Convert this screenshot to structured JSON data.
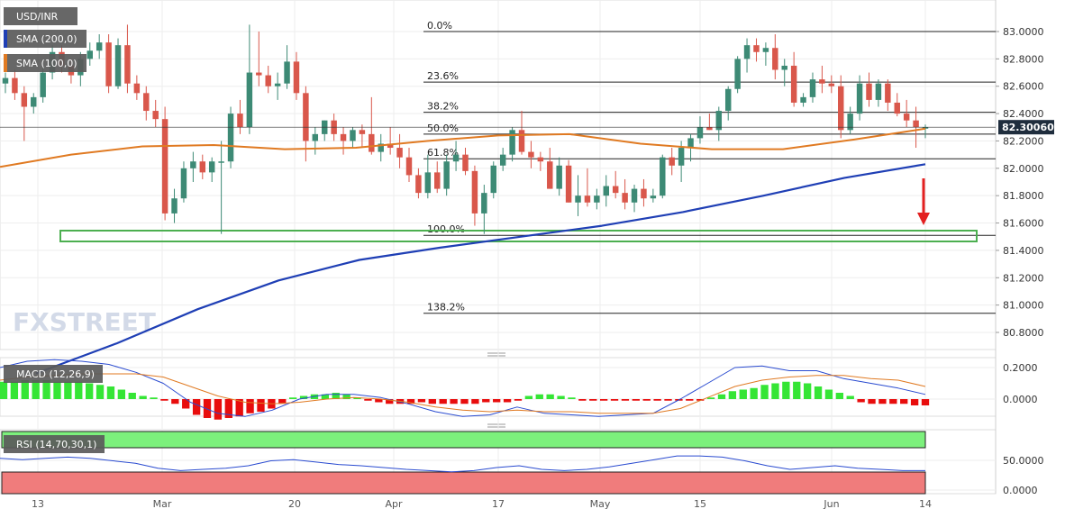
{
  "chart_data": [
    {
      "type": "candlestick",
      "symbol": "USD/INR",
      "x_ticks": [
        "13",
        "Mar",
        "20",
        "Apr",
        "17",
        "May",
        "15",
        "Jun",
        "14"
      ],
      "ylim": [
        80.7,
        83.1
      ],
      "y_ticks": [
        "83.0000",
        "82.8000",
        "82.6000",
        "82.4000",
        "82.2000",
        "82.0000",
        "81.8000",
        "81.6000",
        "81.4000",
        "81.2000",
        "81.0000",
        "80.8000"
      ],
      "last_price": "82.30060",
      "watermark": "FXSTREET",
      "colors": {
        "bull": "#3d8a75",
        "bear": "#d9574b",
        "sma200": "#1f3fb5",
        "sma100": "#e07a22",
        "box": "#4caf50",
        "arrow": "#e32020"
      },
      "fibonacci": [
        {
          "label": "0.0%",
          "value": 83.0
        },
        {
          "label": "23.6%",
          "value": 82.63
        },
        {
          "label": "38.2%",
          "value": 82.41
        },
        {
          "label": "50.0%",
          "value": 82.25
        },
        {
          "label": "61.8%",
          "value": 82.07
        },
        {
          "label": "100.0%",
          "value": 81.51
        },
        {
          "label": "138.2%",
          "value": 80.94
        }
      ],
      "series": [
        {
          "name": "SMA (200,0)",
          "type": "line",
          "values": [
            80.5,
            80.72,
            80.97,
            81.18,
            81.33,
            81.42,
            81.5,
            81.58,
            81.68,
            81.8,
            81.93,
            82.03
          ]
        },
        {
          "name": "SMA (100,0)",
          "type": "line",
          "values": [
            82.01,
            82.1,
            82.16,
            82.17,
            82.14,
            82.15,
            82.2,
            82.24,
            82.25,
            82.18,
            82.14,
            82.14,
            82.21,
            82.29
          ]
        }
      ],
      "candles": [
        [
          82.62,
          82.7,
          82.55,
          82.66
        ],
        [
          82.66,
          82.72,
          82.5,
          82.55
        ],
        [
          82.55,
          82.6,
          82.2,
          82.45
        ],
        [
          82.45,
          82.55,
          82.4,
          82.52
        ],
        [
          82.52,
          82.75,
          82.48,
          82.7
        ],
        [
          82.7,
          82.9,
          82.65,
          82.85
        ],
        [
          82.85,
          82.9,
          82.7,
          82.75
        ],
        [
          82.75,
          82.8,
          82.62,
          82.68
        ],
        [
          82.68,
          82.85,
          82.6,
          82.8
        ],
        [
          82.8,
          82.92,
          82.75,
          82.86
        ],
        [
          82.86,
          82.98,
          82.8,
          82.92
        ],
        [
          82.92,
          82.98,
          82.55,
          82.6
        ],
        [
          82.6,
          82.95,
          82.58,
          82.9
        ],
        [
          82.9,
          83.05,
          82.55,
          82.62
        ],
        [
          82.62,
          82.68,
          82.5,
          82.55
        ],
        [
          82.55,
          82.6,
          82.35,
          82.42
        ],
        [
          82.42,
          82.5,
          82.3,
          82.36
        ],
        [
          82.36,
          82.45,
          81.62,
          81.67
        ],
        [
          81.67,
          81.85,
          81.6,
          81.78
        ],
        [
          81.78,
          82.05,
          81.75,
          82.0
        ],
        [
          82.0,
          82.12,
          81.9,
          82.05
        ],
        [
          82.05,
          82.1,
          81.92,
          81.97
        ],
        [
          81.97,
          82.08,
          81.9,
          82.05
        ],
        [
          82.05,
          82.2,
          81.52,
          82.05
        ],
        [
          82.05,
          82.45,
          82.0,
          82.4
        ],
        [
          82.4,
          82.5,
          82.25,
          82.3
        ],
        [
          82.3,
          83.05,
          82.25,
          82.7
        ],
        [
          82.7,
          83.0,
          82.6,
          82.68
        ],
        [
          82.68,
          82.75,
          82.55,
          82.6
        ],
        [
          82.6,
          82.7,
          82.5,
          82.62
        ],
        [
          82.62,
          82.9,
          82.58,
          82.78
        ],
        [
          82.78,
          82.85,
          82.5,
          82.55
        ],
        [
          82.55,
          82.6,
          82.05,
          82.2
        ],
        [
          82.2,
          82.3,
          82.1,
          82.25
        ],
        [
          82.25,
          82.35,
          82.2,
          82.35
        ],
        [
          82.35,
          82.4,
          82.2,
          82.25
        ],
        [
          82.25,
          82.3,
          82.1,
          82.2
        ],
        [
          82.2,
          82.3,
          82.15,
          82.28
        ],
        [
          82.28,
          82.32,
          82.15,
          82.25
        ],
        [
          82.25,
          82.52,
          82.1,
          82.12
        ],
        [
          82.12,
          82.25,
          82.05,
          82.18
        ],
        [
          82.18,
          82.3,
          82.1,
          82.15
        ],
        [
          82.15,
          82.25,
          82.0,
          82.08
        ],
        [
          82.08,
          82.15,
          81.9,
          81.95
        ],
        [
          81.95,
          82.0,
          81.78,
          81.82
        ],
        [
          81.82,
          82.1,
          81.78,
          81.97
        ],
        [
          81.97,
          82.05,
          81.82,
          81.85
        ],
        [
          81.85,
          82.1,
          81.8,
          82.05
        ],
        [
          82.05,
          82.2,
          81.98,
          82.1
        ],
        [
          82.1,
          82.15,
          81.95,
          81.98
        ],
        [
          81.98,
          82.02,
          81.58,
          81.67
        ],
        [
          81.67,
          81.88,
          81.52,
          81.82
        ],
        [
          81.82,
          82.05,
          81.78,
          82.02
        ],
        [
          82.02,
          82.15,
          81.98,
          82.1
        ],
        [
          82.1,
          82.3,
          82.05,
          82.28
        ],
        [
          82.28,
          82.42,
          82.1,
          82.12
        ],
        [
          82.12,
          82.2,
          82.0,
          82.08
        ],
        [
          82.08,
          82.12,
          81.98,
          82.05
        ],
        [
          82.05,
          82.15,
          81.85,
          81.85
        ],
        [
          81.85,
          82.08,
          81.8,
          82.02
        ],
        [
          82.02,
          82.06,
          81.75,
          81.75
        ],
        [
          81.75,
          81.95,
          81.65,
          81.8
        ],
        [
          81.8,
          82.0,
          81.72,
          81.75
        ],
        [
          81.75,
          81.85,
          81.7,
          81.8
        ],
        [
          81.8,
          81.95,
          81.72,
          81.87
        ],
        [
          81.87,
          81.98,
          81.78,
          81.82
        ],
        [
          81.82,
          81.92,
          81.7,
          81.75
        ],
        [
          81.75,
          81.88,
          81.68,
          81.85
        ],
        [
          81.85,
          81.92,
          81.72,
          81.78
        ],
        [
          81.78,
          81.85,
          81.75,
          81.8
        ],
        [
          81.8,
          82.1,
          81.78,
          82.08
        ],
        [
          82.08,
          82.15,
          81.95,
          82.02
        ],
        [
          82.02,
          82.2,
          81.9,
          82.15
        ],
        [
          82.15,
          82.25,
          82.05,
          82.22
        ],
        [
          82.22,
          82.38,
          82.18,
          82.3
        ],
        [
          82.3,
          82.4,
          82.28,
          82.28
        ],
        [
          82.28,
          82.45,
          82.2,
          82.42
        ],
        [
          82.42,
          82.6,
          82.35,
          82.58
        ],
        [
          82.58,
          82.82,
          82.55,
          82.8
        ],
        [
          82.8,
          82.95,
          82.7,
          82.9
        ],
        [
          82.9,
          82.95,
          82.78,
          82.85
        ],
        [
          82.85,
          82.92,
          82.75,
          82.88
        ],
        [
          82.88,
          82.98,
          82.65,
          82.72
        ],
        [
          82.72,
          82.8,
          82.6,
          82.75
        ],
        [
          82.75,
          82.85,
          82.45,
          82.48
        ],
        [
          82.48,
          82.55,
          82.45,
          82.52
        ],
        [
          82.52,
          82.7,
          82.48,
          82.65
        ],
        [
          82.65,
          82.75,
          82.55,
          82.62
        ],
        [
          82.62,
          82.68,
          82.55,
          82.6
        ],
        [
          82.6,
          82.68,
          82.22,
          82.28
        ],
        [
          82.28,
          82.45,
          82.25,
          82.4
        ],
        [
          82.4,
          82.68,
          82.35,
          82.62
        ],
        [
          82.62,
          82.7,
          82.45,
          82.5
        ],
        [
          82.5,
          82.65,
          82.45,
          82.62
        ],
        [
          82.62,
          82.65,
          82.42,
          82.48
        ],
        [
          82.48,
          82.55,
          82.38,
          82.4
        ],
        [
          82.4,
          82.5,
          82.3,
          82.35
        ],
        [
          82.35,
          82.45,
          82.15,
          82.3
        ],
        [
          82.3,
          82.32,
          82.22,
          82.3
        ]
      ]
    },
    {
      "type": "bar",
      "name": "MACD (12,26,9)",
      "y_ticks": [
        "0.2000",
        "0.0000"
      ],
      "ylim": [
        -0.15,
        0.23
      ],
      "values": [
        0.11,
        0.11,
        0.12,
        0.12,
        0.12,
        0.11,
        0.11,
        0.11,
        0.1,
        0.09,
        0.08,
        0.06,
        0.04,
        0.02,
        0.01,
        -0.01,
        -0.03,
        -0.06,
        -0.1,
        -0.12,
        -0.13,
        -0.12,
        -0.11,
        -0.09,
        -0.08,
        -0.06,
        -0.03,
        0.01,
        0.02,
        0.03,
        0.03,
        0.04,
        0.03,
        0.01,
        -0.01,
        -0.02,
        -0.03,
        -0.03,
        -0.03,
        -0.02,
        -0.03,
        -0.03,
        -0.03,
        -0.03,
        -0.03,
        -0.02,
        -0.02,
        -0.02,
        -0.01,
        0.02,
        0.03,
        0.03,
        0.02,
        0.01,
        -0.01,
        -0.01,
        -0.01,
        -0.01,
        -0.01,
        -0.01,
        -0.01,
        -0.01,
        -0.01,
        -0.01,
        -0.01,
        -0.01,
        0.01,
        0.03,
        0.05,
        0.06,
        0.07,
        0.09,
        0.1,
        0.11,
        0.11,
        0.1,
        0.08,
        0.06,
        0.04,
        0.02,
        -0.02,
        -0.03,
        -0.03,
        -0.03,
        -0.03,
        -0.04,
        -0.04
      ],
      "macd_line": [
        0.2,
        0.24,
        0.25,
        0.24,
        0.22,
        0.17,
        0.1,
        -0.02,
        -0.09,
        -0.11,
        -0.07,
        0.0,
        0.03,
        0.03,
        0.01,
        -0.03,
        -0.08,
        -0.11,
        -0.1,
        -0.05,
        -0.09,
        -0.1,
        -0.11,
        -0.1,
        -0.09,
        0.0,
        0.1,
        0.2,
        0.21,
        0.18,
        0.18,
        0.13,
        0.1,
        0.07,
        0.03
      ],
      "signal_line": [
        0.12,
        0.14,
        0.15,
        0.16,
        0.16,
        0.16,
        0.14,
        0.08,
        0.02,
        -0.02,
        -0.03,
        -0.02,
        0.0,
        0.01,
        0.0,
        -0.02,
        -0.05,
        -0.07,
        -0.08,
        -0.07,
        -0.08,
        -0.08,
        -0.09,
        -0.09,
        -0.09,
        -0.06,
        0.01,
        0.08,
        0.12,
        0.14,
        0.15,
        0.15,
        0.13,
        0.12,
        0.08
      ]
    },
    {
      "type": "line",
      "name": "RSI (14,70,30,1)",
      "y_ticks": [
        "50.0000",
        "0.0000"
      ],
      "ylim": [
        0,
        100
      ],
      "bands": {
        "upper": 70,
        "lower": 30
      },
      "values": [
        70,
        68,
        70,
        72,
        70,
        66,
        62,
        54,
        50,
        52,
        54,
        58,
        66,
        68,
        64,
        60,
        58,
        55,
        52,
        50,
        48,
        50,
        55,
        58,
        52,
        50,
        52,
        56,
        62,
        68,
        74,
        74,
        72,
        66,
        58,
        52,
        55,
        58,
        54,
        52,
        50,
        50
      ]
    }
  ]
}
